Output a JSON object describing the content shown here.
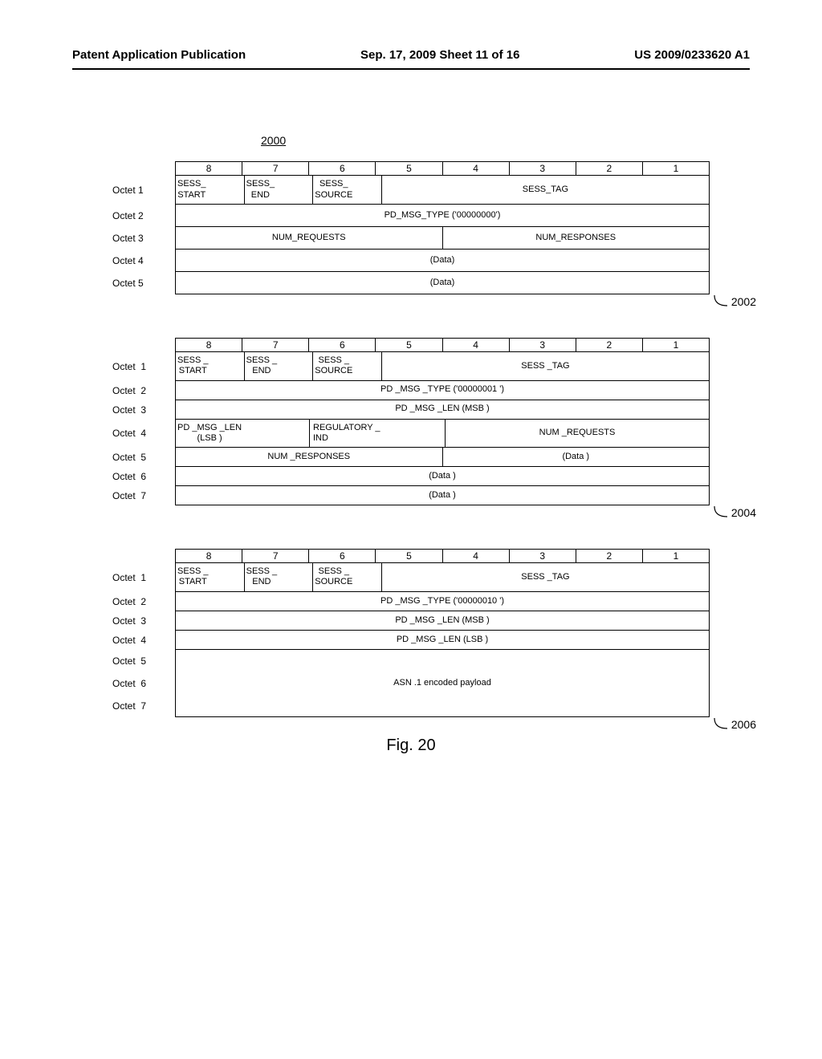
{
  "header": {
    "left": "Patent Application Publication",
    "center": "Sep. 17, 2009  Sheet 11 of 16",
    "right": "US 2009/0233620 A1"
  },
  "figure_number": "2000",
  "bit_headers": [
    "8",
    "7",
    "6",
    "5",
    "4",
    "3",
    "2",
    "1"
  ],
  "table1": {
    "ref": "2002",
    "rows": [
      {
        "label": "Octet 1",
        "cells": [
          {
            "span": 1,
            "text": "SESS_\nSTART"
          },
          {
            "span": 1,
            "text": "SESS_\nEND"
          },
          {
            "span": 1,
            "text": "SESS_\nSOURCE"
          },
          {
            "span": 5,
            "text": "SESS_TAG"
          }
        ]
      },
      {
        "label": "Octet 2",
        "cells": [
          {
            "span": 8,
            "text": "PD_MSG_TYPE ('00000000')"
          }
        ]
      },
      {
        "label": "Octet 3",
        "cells": [
          {
            "span": 4,
            "text": "NUM_REQUESTS"
          },
          {
            "span": 4,
            "text": "NUM_RESPONSES"
          }
        ]
      },
      {
        "label": "Octet 4",
        "cells": [
          {
            "span": 8,
            "text": "(Data)"
          }
        ]
      },
      {
        "label": "Octet 5",
        "cells": [
          {
            "span": 8,
            "text": "(Data)"
          }
        ]
      }
    ]
  },
  "table2": {
    "ref": "2004",
    "rows": [
      {
        "label": "Octet  1",
        "cells": [
          {
            "span": 1,
            "text": "SESS _\nSTART"
          },
          {
            "span": 1,
            "text": "SESS  _\nEND"
          },
          {
            "span": 1,
            "text": "SESS  _\nSOURCE"
          },
          {
            "span": 5,
            "text": "SESS  _TAG"
          }
        ]
      },
      {
        "label": "Octet  2",
        "cells": [
          {
            "span": 8,
            "text": "PD _MSG _TYPE   ('00000001   ')"
          }
        ]
      },
      {
        "label": "Octet  3",
        "cells": [
          {
            "span": 8,
            "text": "PD _MSG _LEN  (MSB )"
          }
        ]
      },
      {
        "label": "Octet  4",
        "cells": [
          {
            "span": 2,
            "text": "PD _MSG _LEN\n(LSB )"
          },
          {
            "span": 2,
            "text": "REGULATORY    _\nIND"
          },
          {
            "span": 4,
            "text": "NUM  _REQUESTS"
          }
        ]
      },
      {
        "label": "Octet  5",
        "cells": [
          {
            "span": 4,
            "text": "NUM  _RESPONSES"
          },
          {
            "span": 4,
            "text": "(Data  )"
          }
        ]
      },
      {
        "label": "Octet  6",
        "cells": [
          {
            "span": 8,
            "text": "(Data  )"
          }
        ]
      },
      {
        "label": "Octet  7",
        "cells": [
          {
            "span": 8,
            "text": "(Data  )"
          }
        ]
      }
    ]
  },
  "table3": {
    "ref": "2006",
    "rows": [
      {
        "label": "Octet  1",
        "cells": [
          {
            "span": 1,
            "text": "SESS _\nSTART"
          },
          {
            "span": 1,
            "text": "SESS  _\nEND"
          },
          {
            "span": 1,
            "text": "SESS  _\nSOURCE"
          },
          {
            "span": 5,
            "text": "SESS  _TAG"
          }
        ]
      },
      {
        "label": "Octet  2",
        "cells": [
          {
            "span": 8,
            "text": "PD _MSG _TYPE  ('00000010   ')"
          }
        ]
      },
      {
        "label": "Octet  3",
        "cells": [
          {
            "span": 8,
            "text": "PD _MSG _LEN  (MSB )"
          }
        ]
      },
      {
        "label": "Octet  4",
        "cells": [
          {
            "span": 8,
            "text": "PD _MSG _LEN  (LSB )"
          }
        ]
      },
      {
        "label": "Octet  5\nOctet  6\nOctet  7",
        "big": true,
        "cells": [
          {
            "span": 8,
            "text": "ASN .1  encoded payload"
          }
        ]
      }
    ]
  },
  "caption": "Fig. 20"
}
